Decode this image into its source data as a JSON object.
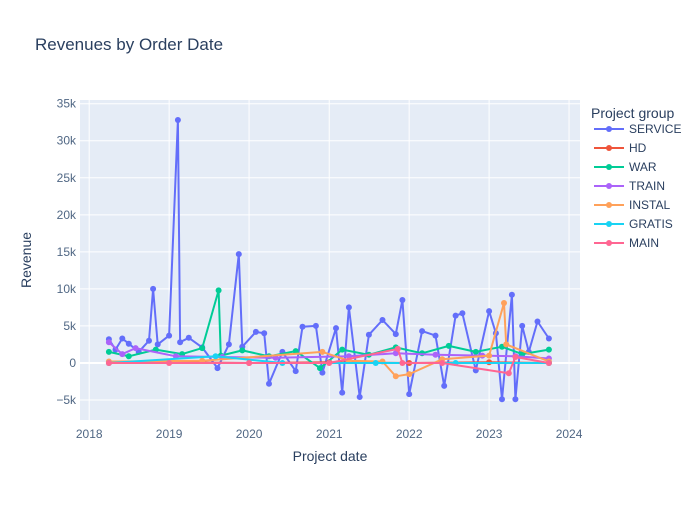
{
  "chart_data": {
    "type": "line",
    "title": "Revenues by Order Date",
    "xlabel": "Project date",
    "ylabel": "Revenue",
    "x_ticks": [
      "2018",
      "2019",
      "2020",
      "2021",
      "2022",
      "2023",
      "2024"
    ],
    "y_ticks": [
      "−5k",
      "0",
      "5k",
      "10k",
      "15k",
      "20k",
      "25k",
      "30k",
      "35k"
    ],
    "xlim": [
      "2017-11-20",
      "2024-02-20"
    ],
    "ylim": [
      -7700,
      35500
    ],
    "grid": true,
    "legend_title": "Project group",
    "legend_placement": "right",
    "series": [
      {
        "name": "SERVICE",
        "color": "#636efa",
        "points": [
          [
            "2018-04-01",
            3200
          ],
          [
            "2018-05-01",
            1800
          ],
          [
            "2018-06-01",
            3300
          ],
          [
            "2018-07-01",
            2600
          ],
          [
            "2018-08-15",
            1500
          ],
          [
            "2018-10-01",
            3000
          ],
          [
            "2018-10-20",
            10000
          ],
          [
            "2018-11-10",
            2500
          ],
          [
            "2019-01-01",
            3700
          ],
          [
            "2019-02-10",
            32800
          ],
          [
            "2019-02-20",
            2800
          ],
          [
            "2019-04-01",
            3400
          ],
          [
            "2019-06-01",
            2100
          ],
          [
            "2019-08-10",
            -700
          ],
          [
            "2019-10-01",
            2500
          ],
          [
            "2019-11-15",
            14700
          ],
          [
            "2019-12-01",
            2200
          ],
          [
            "2020-02-01",
            4200
          ],
          [
            "2020-03-10",
            4000
          ],
          [
            "2020-04-01",
            -2800
          ],
          [
            "2020-06-01",
            1500
          ],
          [
            "2020-08-01",
            -1100
          ],
          [
            "2020-09-01",
            4900
          ],
          [
            "2020-11-01",
            5000
          ],
          [
            "2020-12-01",
            -1300
          ],
          [
            "2021-02-01",
            4700
          ],
          [
            "2021-03-01",
            -4000
          ],
          [
            "2021-04-01",
            7500
          ],
          [
            "2021-05-20",
            -4600
          ],
          [
            "2021-07-01",
            3800
          ],
          [
            "2021-09-01",
            5800
          ],
          [
            "2021-11-01",
            3900
          ],
          [
            "2021-12-01",
            8500
          ],
          [
            "2022-01-01",
            -4200
          ],
          [
            "2022-03-01",
            4300
          ],
          [
            "2022-05-01",
            3700
          ],
          [
            "2022-06-10",
            -3100
          ],
          [
            "2022-08-01",
            6400
          ],
          [
            "2022-09-01",
            6700
          ],
          [
            "2022-11-01",
            -1000
          ],
          [
            "2023-01-01",
            7000
          ],
          [
            "2023-02-01",
            4000
          ],
          [
            "2023-03-01",
            -4900
          ],
          [
            "2023-04-15",
            9200
          ],
          [
            "2023-05-01",
            -4900
          ],
          [
            "2023-06-01",
            5000
          ],
          [
            "2023-07-01",
            1500
          ],
          [
            "2023-08-10",
            5600
          ],
          [
            "2023-10-01",
            3300
          ]
        ]
      },
      {
        "name": "HD",
        "color": "#ef553b",
        "points": [
          [
            "2018-04-01",
            0
          ],
          [
            "2019-01-01",
            100
          ],
          [
            "2020-01-01",
            0
          ],
          [
            "2021-01-01",
            100
          ],
          [
            "2022-01-01",
            0
          ],
          [
            "2023-01-01",
            100
          ],
          [
            "2023-10-01",
            0
          ]
        ]
      },
      {
        "name": "WAR",
        "color": "#00cc96",
        "points": [
          [
            "2018-04-01",
            1500
          ],
          [
            "2018-07-01",
            900
          ],
          [
            "2018-11-01",
            1800
          ],
          [
            "2019-03-01",
            1200
          ],
          [
            "2019-06-01",
            2000
          ],
          [
            "2019-08-15",
            9800
          ],
          [
            "2019-08-25",
            1000
          ],
          [
            "2019-12-01",
            1700
          ],
          [
            "2020-04-01",
            900
          ],
          [
            "2020-08-01",
            1600
          ],
          [
            "2020-11-20",
            -700
          ],
          [
            "2021-03-01",
            1800
          ],
          [
            "2021-07-01",
            1100
          ],
          [
            "2021-11-01",
            2100
          ],
          [
            "2022-03-01",
            1300
          ],
          [
            "2022-07-01",
            2300
          ],
          [
            "2022-11-01",
            1500
          ],
          [
            "2023-03-01",
            2200
          ],
          [
            "2023-06-01",
            1200
          ],
          [
            "2023-10-01",
            1800
          ]
        ]
      },
      {
        "name": "TRAIN",
        "color": "#ab63fa",
        "points": [
          [
            "2018-04-01",
            2800
          ],
          [
            "2018-06-01",
            1200
          ],
          [
            "2018-08-01",
            2000
          ],
          [
            "2019-02-01",
            900
          ],
          [
            "2019-09-01",
            800
          ],
          [
            "2020-05-01",
            700
          ],
          [
            "2021-04-01",
            900
          ],
          [
            "2021-11-01",
            1300
          ],
          [
            "2022-05-01",
            1100
          ],
          [
            "2022-12-01",
            1000
          ],
          [
            "2023-05-01",
            900
          ],
          [
            "2023-10-01",
            600
          ]
        ]
      },
      {
        "name": "INSTAL",
        "color": "#ffa15a",
        "points": [
          [
            "2018-04-01",
            200
          ],
          [
            "2019-06-01",
            300
          ],
          [
            "2020-12-01",
            1500
          ],
          [
            "2021-04-01",
            300
          ],
          [
            "2021-09-01",
            200
          ],
          [
            "2021-11-01",
            -1800
          ],
          [
            "2022-01-01",
            -1500
          ],
          [
            "2022-06-01",
            500
          ],
          [
            "2023-01-01",
            1000
          ],
          [
            "2023-03-10",
            8100
          ],
          [
            "2023-03-20",
            2500
          ],
          [
            "2023-10-01",
            200
          ]
        ]
      },
      {
        "name": "GRATIS",
        "color": "#19d3f3",
        "points": [
          [
            "2018-04-01",
            0
          ],
          [
            "2019-08-01",
            900
          ],
          [
            "2020-06-01",
            0
          ],
          [
            "2021-08-01",
            0
          ],
          [
            "2022-08-01",
            0
          ],
          [
            "2023-10-01",
            0
          ]
        ]
      },
      {
        "name": "MAIN",
        "color": "#ff6692",
        "points": [
          [
            "2018-04-01",
            0
          ],
          [
            "2019-01-01",
            0
          ],
          [
            "2020-01-01",
            0
          ],
          [
            "2021-01-01",
            0
          ],
          [
            "2021-11-10",
            1900
          ],
          [
            "2021-12-01",
            0
          ],
          [
            "2022-06-01",
            0
          ],
          [
            "2023-04-01",
            -1400
          ],
          [
            "2023-05-01",
            800
          ],
          [
            "2023-10-01",
            0
          ]
        ]
      }
    ]
  }
}
